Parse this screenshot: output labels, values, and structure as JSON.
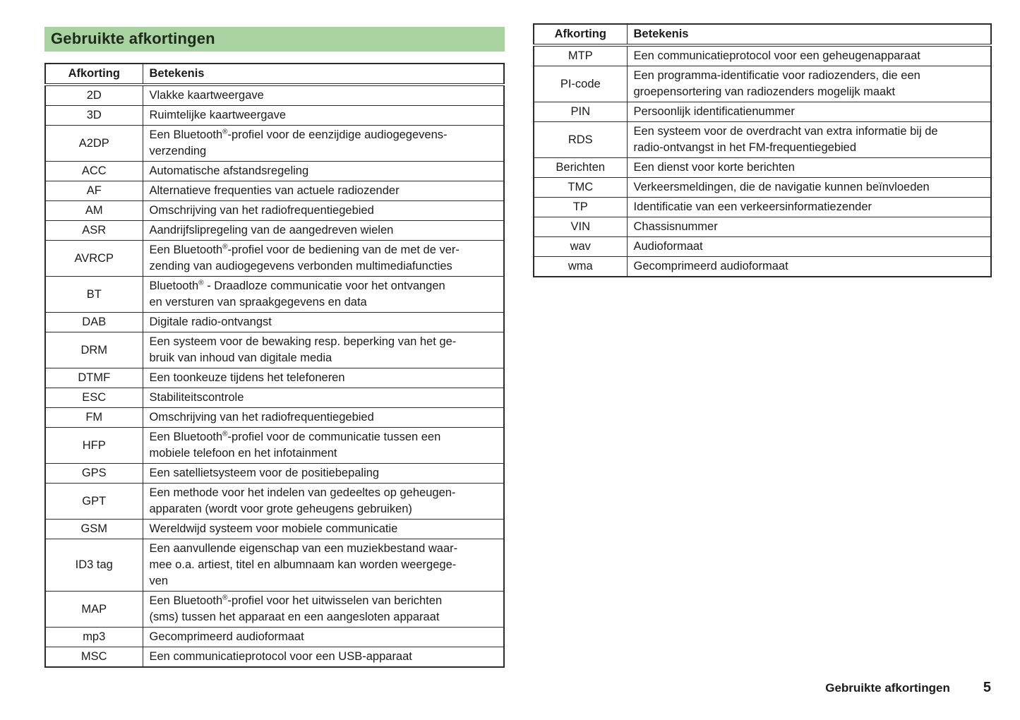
{
  "page_title": "Gebruikte afkortingen",
  "column_headers": {
    "abbreviation": "Afkorting",
    "meaning": "Betekenis"
  },
  "colors": {
    "title_background": "#a8d2a0",
    "table_border": "#2b2b2b",
    "text": "#1b1b1b"
  },
  "tables": {
    "left": {
      "rows": [
        {
          "abbr": "2D",
          "meaning": "Vlakke kaartweergave"
        },
        {
          "abbr": "3D",
          "meaning": "Ruimtelijke kaartweergave"
        },
        {
          "abbr": "A2DP",
          "meaning": "Een Bluetooth®-profiel voor de eenzijdige audiogegevens-\nverzending"
        },
        {
          "abbr": "ACC",
          "meaning": "Automatische afstandsregeling"
        },
        {
          "abbr": "AF",
          "meaning": "Alternatieve frequenties van actuele radiozender"
        },
        {
          "abbr": "AM",
          "meaning": "Omschrijving van het radiofrequentiegebied"
        },
        {
          "abbr": "ASR",
          "meaning": "Aandrijfslipregeling van de aangedreven wielen"
        },
        {
          "abbr": "AVRCP",
          "meaning": "Een Bluetooth®-profiel voor de bediening van de met de ver-\nzending van audiogegevens verbonden multimediafuncties"
        },
        {
          "abbr": "BT",
          "meaning": "Bluetooth® - Draadloze communicatie voor het ontvangen\nen versturen van spraakgegevens en data"
        },
        {
          "abbr": "DAB",
          "meaning": "Digitale radio-ontvangst"
        },
        {
          "abbr": "DRM",
          "meaning": "Een systeem voor de bewaking resp. beperking van het ge-\nbruik van inhoud van digitale media"
        },
        {
          "abbr": "DTMF",
          "meaning": "Een toonkeuze tijdens het telefoneren"
        },
        {
          "abbr": "ESC",
          "meaning": "Stabiliteitscontrole"
        },
        {
          "abbr": "FM",
          "meaning": "Omschrijving van het radiofrequentiegebied"
        },
        {
          "abbr": "HFP",
          "meaning": "Een Bluetooth®-profiel voor de communicatie tussen een\nmobiele telefoon en het infotainment"
        },
        {
          "abbr": "GPS",
          "meaning": "Een satellietsysteem voor de positiebepaling"
        },
        {
          "abbr": "GPT",
          "meaning": "Een methode voor het indelen van gedeeltes op geheugen-\napparaten (wordt voor grote geheugens gebruiken)"
        },
        {
          "abbr": "GSM",
          "meaning": "Wereldwijd systeem voor mobiele communicatie"
        },
        {
          "abbr": "ID3 tag",
          "meaning": "Een aanvullende eigenschap van een muziekbestand waar-\nmee o.a. artiest, titel en albumnaam kan worden weergege-\nven"
        },
        {
          "abbr": "MAP",
          "meaning": "Een Bluetooth®-profiel voor het uitwisselen van berichten\n(sms) tussen het apparaat en een aangesloten apparaat"
        },
        {
          "abbr": "mp3",
          "meaning": "Gecomprimeerd audioformaat"
        },
        {
          "abbr": "MSC",
          "meaning": "Een communicatieprotocol voor een USB-apparaat"
        }
      ]
    },
    "right": {
      "rows": [
        {
          "abbr": "MTP",
          "meaning": "Een communicatieprotocol voor een geheugenapparaat"
        },
        {
          "abbr": "PI-code",
          "meaning": "Een programma-identificatie voor radiozenders, die een\ngroepensortering van radiozenders mogelijk maakt"
        },
        {
          "abbr": "PIN",
          "meaning": "Persoonlijk identificatienummer"
        },
        {
          "abbr": "RDS",
          "meaning": "Een systeem voor de overdracht van extra informatie bij de\nradio-ontvangst in het FM-frequentiegebied"
        },
        {
          "abbr": "Berichten",
          "meaning": "Een dienst voor korte berichten"
        },
        {
          "abbr": "TMC",
          "meaning": "Verkeersmeldingen, die de navigatie kunnen beïnvloeden"
        },
        {
          "abbr": "TP",
          "meaning": "Identificatie van een verkeersinformatiezender"
        },
        {
          "abbr": "VIN",
          "meaning": "Chassisnummer"
        },
        {
          "abbr": "wav",
          "meaning": "Audioformaat"
        },
        {
          "abbr": "wma",
          "meaning": "Gecomprimeerd audioformaat"
        }
      ]
    }
  },
  "footer": {
    "section": "Gebruikte afkortingen",
    "page_number": "5"
  }
}
